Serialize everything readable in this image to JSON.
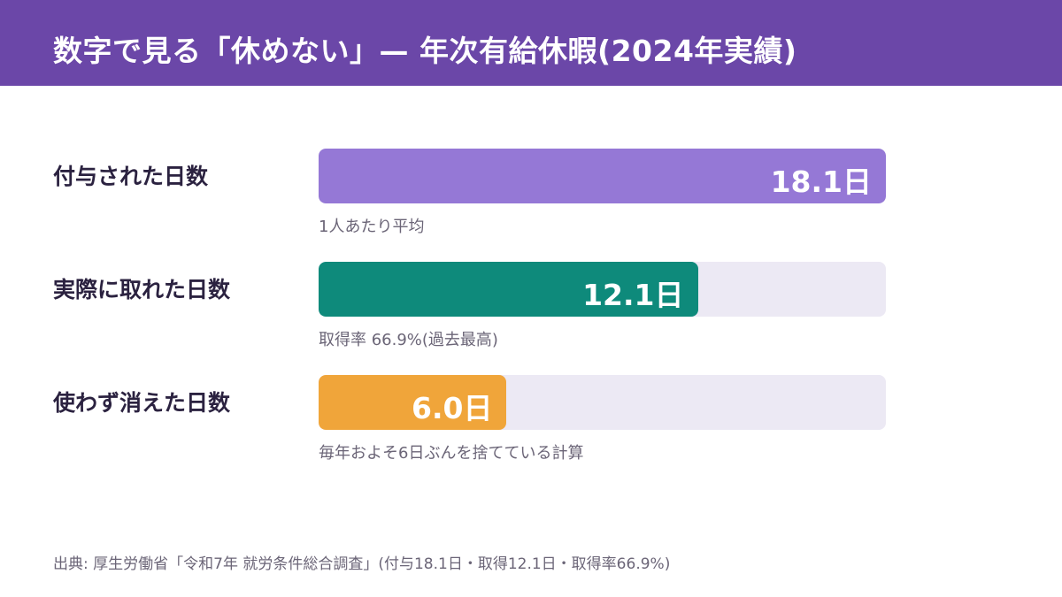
{
  "header": {
    "title": "数字で見る「休めない」— 年次有給休暇(2024年実績)"
  },
  "chart_data": {
    "type": "bar",
    "orientation": "horizontal",
    "title": "数字で見る「休めない」— 年次有給休暇(2024年実績)",
    "max": 18.1,
    "bars": [
      {
        "label": "付与された日数",
        "value": 18.1,
        "value_label": "18.1日",
        "note": "1人あたり平均",
        "color": "#9578d6"
      },
      {
        "label": "実際に取れた日数",
        "value": 12.1,
        "value_label": "12.1日",
        "note": "取得率 66.9%(過去最高)",
        "color": "#0e8a7b"
      },
      {
        "label": "使わず消えた日数",
        "value": 6.0,
        "value_label": "6.0日",
        "note": "毎年およそ6日ぶんを捨てている計算",
        "color": "#f0a53a"
      }
    ],
    "track_color": "#ece9f4"
  },
  "footer": {
    "source": "出典: 厚生労働省「令和7年 就労条件総合調査」(付与18.1日・取得12.1日・取得率66.9%)"
  }
}
